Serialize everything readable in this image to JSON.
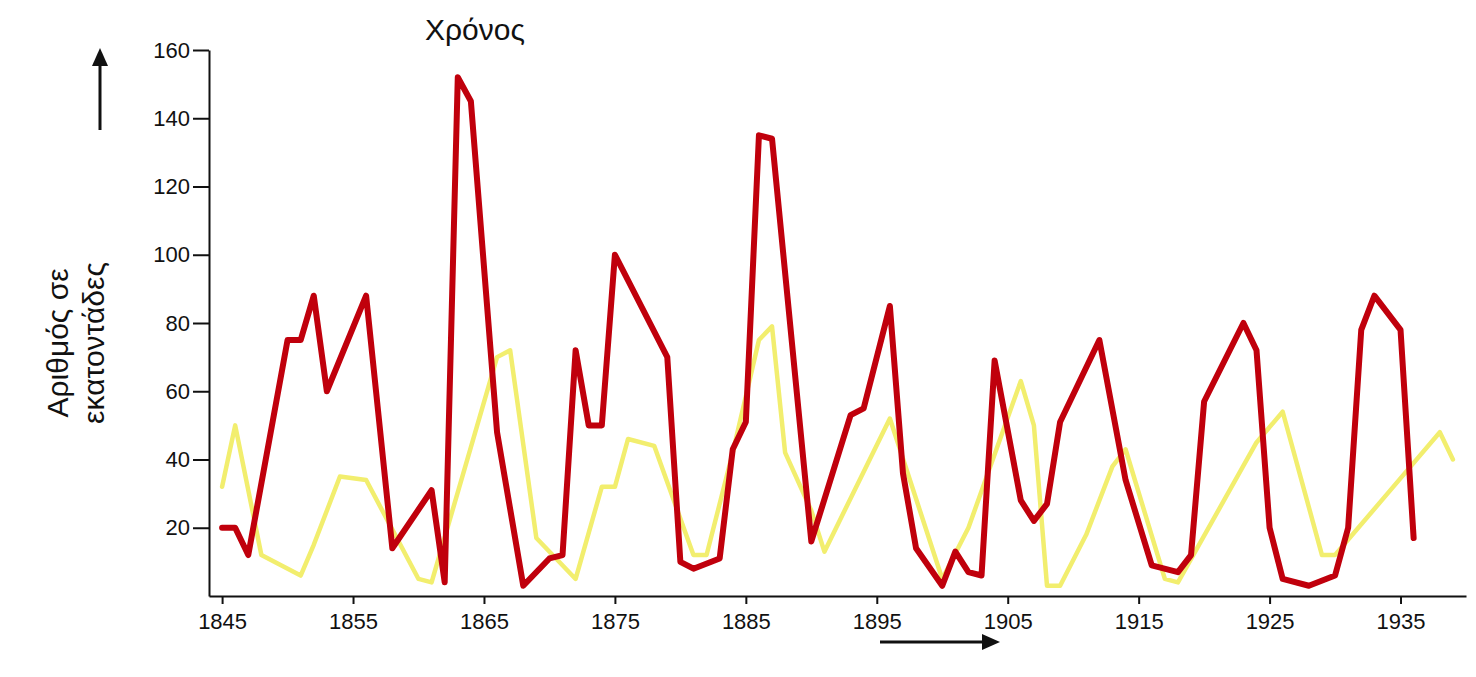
{
  "chart_data": {
    "type": "line",
    "title": "Χρόνος",
    "y_label": "Αριθμός σε εκατοντάδες",
    "xlim": [
      1844,
      1940
    ],
    "xticks": [
      1845,
      1855,
      1865,
      1875,
      1885,
      1895,
      1905,
      1915,
      1925,
      1935
    ],
    "ylim": [
      0,
      160
    ],
    "yticks": [
      20,
      40,
      60,
      80,
      100,
      120,
      140,
      160
    ],
    "grid": false,
    "series": [
      {
        "color": "#c0000c",
        "x": [
          1845,
          1846,
          1847,
          1850,
          1851,
          1852,
          1853,
          1856,
          1858,
          1861,
          1862,
          1863,
          1864,
          1866,
          1868,
          1870,
          1871,
          1872,
          1873,
          1874,
          1875,
          1879,
          1880,
          1881,
          1883,
          1884,
          1885,
          1886,
          1887,
          1890,
          1893,
          1894,
          1896,
          1897,
          1898,
          1900,
          1901,
          1902,
          1903,
          1904,
          1906,
          1907,
          1908,
          1909,
          1912,
          1914,
          1916,
          1918,
          1919,
          1920,
          1923,
          1924,
          1925,
          1926,
          1928,
          1930,
          1931,
          1932,
          1933,
          1935,
          1936
        ],
        "values": [
          20,
          20,
          12,
          75,
          75,
          88,
          60,
          88,
          14,
          31,
          4,
          152,
          145,
          48,
          3,
          11,
          12,
          72,
          50,
          50,
          100,
          70,
          10,
          8,
          11,
          43,
          51,
          135,
          134,
          16,
          53,
          55,
          85,
          36,
          14,
          3,
          13,
          7,
          6,
          69,
          28,
          22,
          27,
          51,
          75,
          34,
          9,
          7,
          12,
          57,
          80,
          72,
          20,
          5,
          3,
          6,
          20,
          78,
          88,
          78,
          17
        ]
      },
      {
        "color": "#f2ee6e",
        "x": [
          1845,
          1846,
          1848,
          1851,
          1852,
          1854,
          1856,
          1860,
          1861,
          1866,
          1867,
          1869,
          1872,
          1874,
          1875,
          1876,
          1878,
          1881,
          1882,
          1884,
          1886,
          1887,
          1888,
          1890,
          1891,
          1896,
          1900,
          1902,
          1906,
          1907,
          1908,
          1909,
          1911,
          1913,
          1914,
          1917,
          1918,
          1924,
          1926,
          1929,
          1930,
          1934,
          1938,
          1939
        ],
        "values": [
          32,
          50,
          12,
          6,
          15,
          35,
          34,
          5,
          4,
          70,
          72,
          17,
          5,
          32,
          32,
          46,
          44,
          12,
          12,
          42,
          75,
          79,
          42,
          25,
          13,
          52,
          5,
          20,
          63,
          50,
          3,
          3,
          18,
          38,
          43,
          5,
          4,
          45,
          54,
          12,
          12,
          30,
          48,
          40
        ]
      }
    ]
  }
}
